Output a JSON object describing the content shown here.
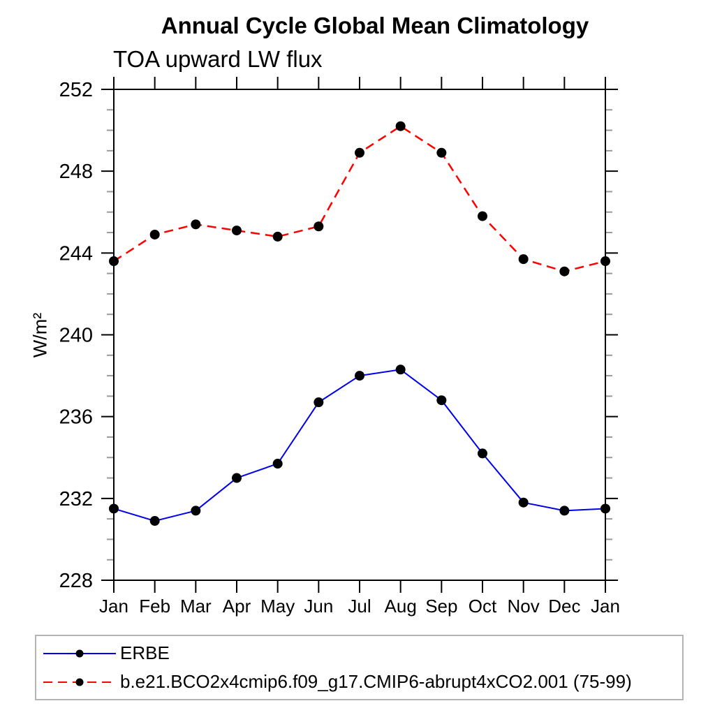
{
  "chart_data": {
    "type": "line",
    "title": "Annual Cycle Global Mean Climatology",
    "subtitle": "TOA upward LW flux",
    "ylabel": "W/m²",
    "xlabel": "",
    "categories": [
      "Jan",
      "Feb",
      "Mar",
      "Apr",
      "May",
      "Jun",
      "Jul",
      "Aug",
      "Sep",
      "Oct",
      "Nov",
      "Dec",
      "Jan"
    ],
    "y_axis": {
      "min": 228,
      "max": 252,
      "major_step": 4,
      "minor_step": 1,
      "tick_labels": [
        "228",
        "232",
        "236",
        "240",
        "244",
        "248",
        "252"
      ]
    },
    "grid": false,
    "legend_position": "bottom-left",
    "series": [
      {
        "name": "ERBE",
        "color": "#0000ee",
        "line_style": "solid",
        "marker": "filled-circle",
        "marker_color": "#000000",
        "values": [
          231.5,
          230.9,
          231.4,
          233.0,
          233.7,
          236.7,
          238.0,
          238.3,
          236.8,
          234.2,
          231.8,
          231.4,
          231.5
        ]
      },
      {
        "name": "b.e21.BCO2x4cmip6.f09_g17.CMIP6-abrupt4xCO2.001 (75-99)",
        "color": "#ff0000",
        "line_style": "dashed",
        "marker": "filled-circle",
        "marker_color": "#000000",
        "values": [
          243.6,
          244.9,
          245.4,
          245.1,
          244.8,
          245.3,
          248.9,
          250.2,
          248.9,
          245.8,
          243.7,
          243.1,
          243.6
        ]
      }
    ]
  }
}
